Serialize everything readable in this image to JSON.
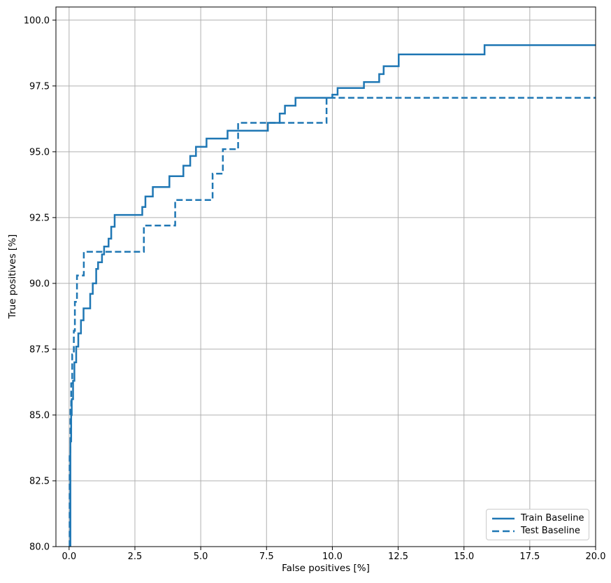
{
  "figure": {
    "background_color": "#ffffff",
    "text_color": "#000000",
    "grid_color": "#b0b0b0",
    "spine_color": "#000000",
    "accent_color": "#1f77b4"
  },
  "legend": {
    "position": "lower right",
    "items": [
      {
        "label": "Train Baseline",
        "style": "solid",
        "color": "#1f77b4"
      },
      {
        "label": "Test Baseline",
        "style": "dashed",
        "color": "#1f77b4"
      }
    ]
  },
  "chart_data": {
    "type": "line",
    "subtype": "roc-step-curves",
    "title": "",
    "xlabel": "False positives [%]",
    "ylabel": "True positives [%]",
    "xlim": [
      -0.5,
      20.0
    ],
    "ylim": [
      80.0,
      100.5
    ],
    "grid": true,
    "legend_position": "lower right",
    "x_ticks": [
      0.0,
      2.5,
      5.0,
      7.5,
      10.0,
      12.5,
      15.0,
      17.5,
      20.0
    ],
    "x_tick_labels": [
      "0.0",
      "2.5",
      "5.0",
      "7.5",
      "10.0",
      "12.5",
      "15.0",
      "17.5",
      "20.0"
    ],
    "y_ticks": [
      80.0,
      82.5,
      85.0,
      87.5,
      90.0,
      92.5,
      95.0,
      97.5,
      100.0
    ],
    "y_tick_labels": [
      "80.0",
      "82.5",
      "85.0",
      "87.5",
      "90.0",
      "92.5",
      "95.0",
      "97.5",
      "100.0"
    ],
    "series": [
      {
        "name": "Train Baseline",
        "style": "solid",
        "color": "#1f77b4",
        "line_width": 2.5,
        "points": [
          [
            0.05,
            80.0
          ],
          [
            0.05,
            84.0
          ],
          [
            0.08,
            84.0
          ],
          [
            0.08,
            85.0
          ],
          [
            0.1,
            85.0
          ],
          [
            0.1,
            85.6
          ],
          [
            0.15,
            85.6
          ],
          [
            0.15,
            86.3
          ],
          [
            0.2,
            86.3
          ],
          [
            0.2,
            87.0
          ],
          [
            0.27,
            87.0
          ],
          [
            0.27,
            87.6
          ],
          [
            0.35,
            87.6
          ],
          [
            0.35,
            88.1
          ],
          [
            0.45,
            88.1
          ],
          [
            0.45,
            88.6
          ],
          [
            0.55,
            88.6
          ],
          [
            0.55,
            89.05
          ],
          [
            0.8,
            89.05
          ],
          [
            0.8,
            89.6
          ],
          [
            0.9,
            89.6
          ],
          [
            0.9,
            90.0
          ],
          [
            1.03,
            90.0
          ],
          [
            1.03,
            90.55
          ],
          [
            1.1,
            90.55
          ],
          [
            1.1,
            90.8
          ],
          [
            1.25,
            90.8
          ],
          [
            1.25,
            91.1
          ],
          [
            1.33,
            91.1
          ],
          [
            1.33,
            91.4
          ],
          [
            1.5,
            91.4
          ],
          [
            1.5,
            91.7
          ],
          [
            1.6,
            91.7
          ],
          [
            1.6,
            92.15
          ],
          [
            1.73,
            92.15
          ],
          [
            1.73,
            92.6
          ],
          [
            2.78,
            92.6
          ],
          [
            2.78,
            92.9
          ],
          [
            2.9,
            92.9
          ],
          [
            2.9,
            93.3
          ],
          [
            3.18,
            93.3
          ],
          [
            3.18,
            93.66
          ],
          [
            3.81,
            93.66
          ],
          [
            3.81,
            94.07
          ],
          [
            4.34,
            94.07
          ],
          [
            4.34,
            94.47
          ],
          [
            4.6,
            94.47
          ],
          [
            4.6,
            94.84
          ],
          [
            4.82,
            94.84
          ],
          [
            4.82,
            95.19
          ],
          [
            5.22,
            95.19
          ],
          [
            5.22,
            95.5
          ],
          [
            6.02,
            95.5
          ],
          [
            6.02,
            95.8
          ],
          [
            7.55,
            95.8
          ],
          [
            7.55,
            96.1
          ],
          [
            8.0,
            96.1
          ],
          [
            8.0,
            96.45
          ],
          [
            8.2,
            96.45
          ],
          [
            8.2,
            96.75
          ],
          [
            8.6,
            96.75
          ],
          [
            8.6,
            97.05
          ],
          [
            10.0,
            97.05
          ],
          [
            10.0,
            97.17
          ],
          [
            10.2,
            97.17
          ],
          [
            10.2,
            97.42
          ],
          [
            11.2,
            97.42
          ],
          [
            11.2,
            97.65
          ],
          [
            11.78,
            97.65
          ],
          [
            11.78,
            97.95
          ],
          [
            11.95,
            97.95
          ],
          [
            11.95,
            98.25
          ],
          [
            12.52,
            98.25
          ],
          [
            12.52,
            98.7
          ],
          [
            15.78,
            98.7
          ],
          [
            15.78,
            99.05
          ],
          [
            20.0,
            99.05
          ]
        ]
      },
      {
        "name": "Test Baseline",
        "style": "dashed",
        "color": "#1f77b4",
        "line_width": 2.5,
        "points": [
          [
            0.02,
            80.0
          ],
          [
            0.02,
            83.5
          ],
          [
            0.05,
            83.5
          ],
          [
            0.05,
            85.2
          ],
          [
            0.08,
            85.2
          ],
          [
            0.08,
            86.2
          ],
          [
            0.12,
            86.2
          ],
          [
            0.12,
            87.3
          ],
          [
            0.18,
            87.3
          ],
          [
            0.18,
            88.2
          ],
          [
            0.22,
            88.2
          ],
          [
            0.22,
            89.3
          ],
          [
            0.3,
            89.3
          ],
          [
            0.3,
            90.3
          ],
          [
            0.56,
            90.3
          ],
          [
            0.56,
            91.2
          ],
          [
            2.84,
            91.2
          ],
          [
            2.84,
            92.2
          ],
          [
            4.03,
            92.2
          ],
          [
            4.03,
            93.17
          ],
          [
            5.45,
            93.17
          ],
          [
            5.45,
            94.17
          ],
          [
            5.84,
            94.17
          ],
          [
            5.84,
            95.1
          ],
          [
            6.42,
            95.1
          ],
          [
            6.42,
            96.1
          ],
          [
            9.78,
            96.1
          ],
          [
            9.78,
            97.05
          ],
          [
            20.0,
            97.05
          ]
        ]
      }
    ]
  }
}
